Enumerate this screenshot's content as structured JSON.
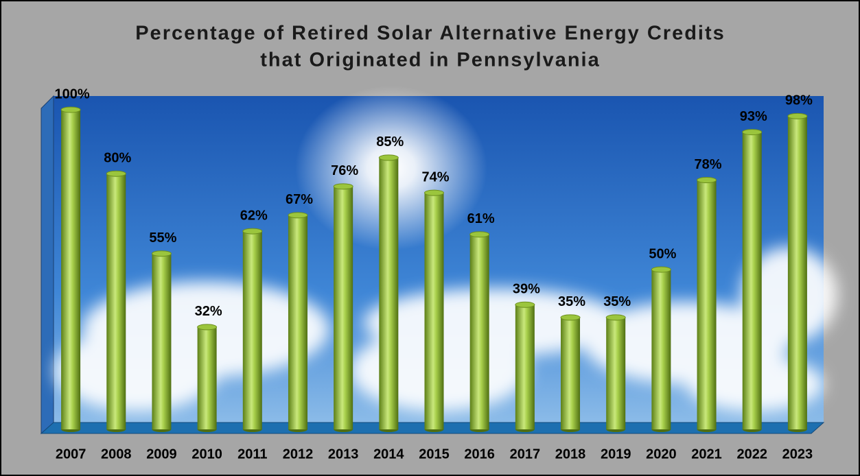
{
  "chart_data": {
    "type": "bar",
    "title": [
      "Percentage of Retired Solar Alternative Energy Credits",
      "that Originated in Pennsylvania"
    ],
    "categories": [
      "2007",
      "2008",
      "2009",
      "2010",
      "2011",
      "2012",
      "2013",
      "2014",
      "2015",
      "2016",
      "2017",
      "2018",
      "2019",
      "2020",
      "2021",
      "2022",
      "2023"
    ],
    "values": [
      100,
      80,
      55,
      32,
      62,
      67,
      76,
      85,
      74,
      61,
      39,
      35,
      35,
      50,
      78,
      93,
      98
    ],
    "value_labels": [
      "100%",
      "80%",
      "55%",
      "32%",
      "62%",
      "67%",
      "76%",
      "85%",
      "74%",
      "61%",
      "39%",
      "35%",
      "35%",
      "50%",
      "78%",
      "93%",
      "98%"
    ],
    "color": "#9bc53d",
    "ylim": [
      0,
      100
    ]
  }
}
